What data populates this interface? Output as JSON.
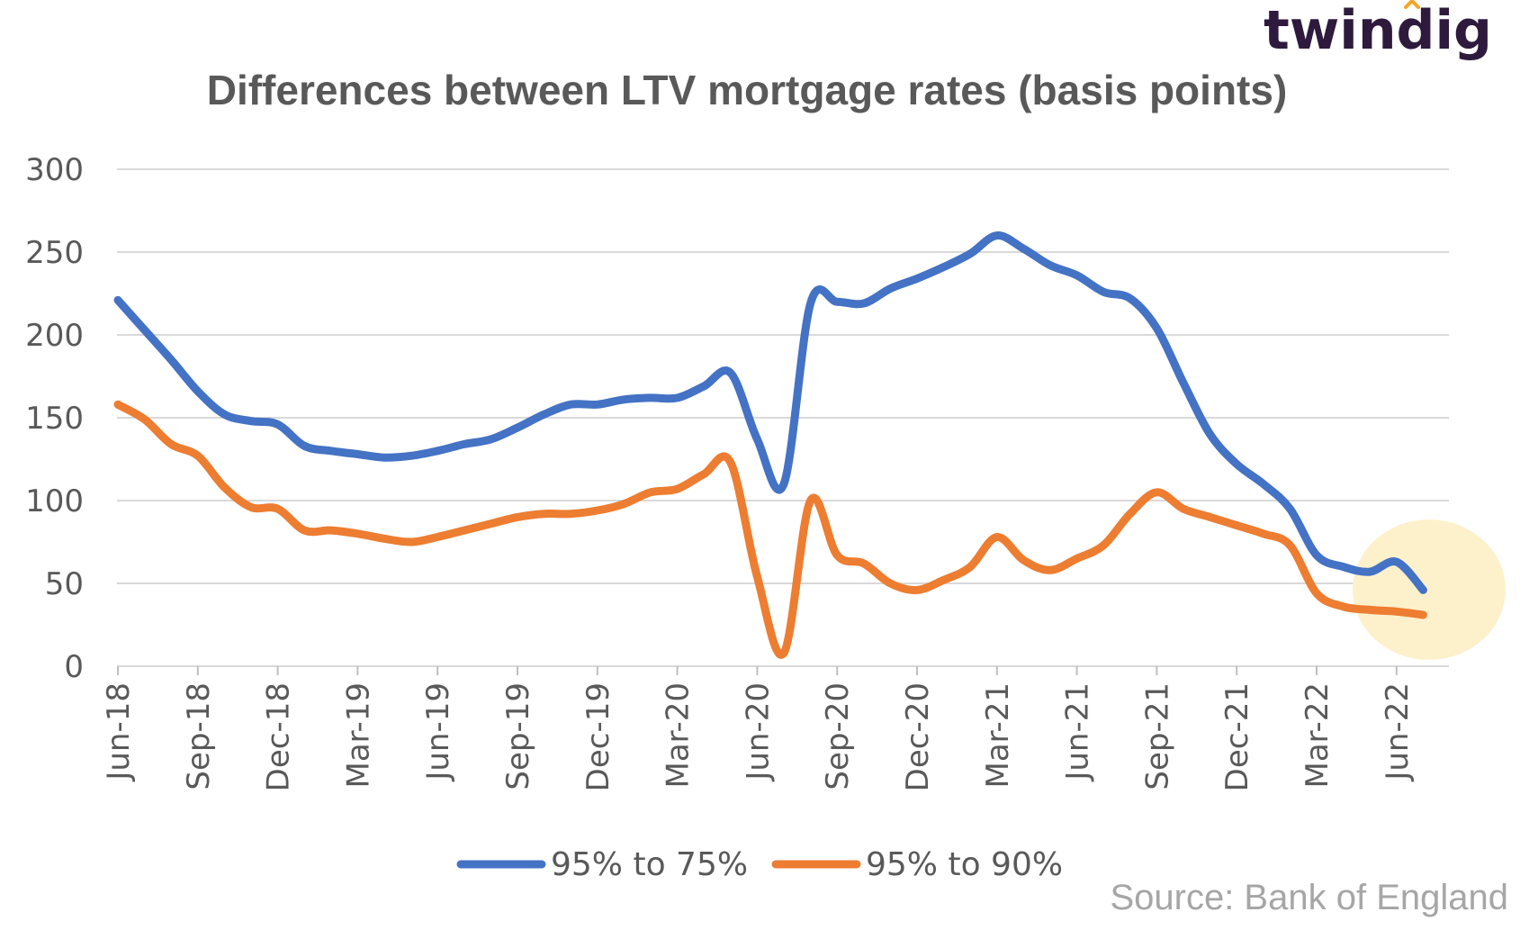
{
  "brand": {
    "logo_text": "twindig",
    "accent_color": "#f5a623",
    "text_color": "#2e1a3c"
  },
  "source_note": "Source: Bank of England",
  "chart_data": {
    "type": "line",
    "title": "Differences between LTV mortgage rates (basis points)",
    "xlabel": "",
    "ylabel": "",
    "ylim": [
      0,
      300
    ],
    "yticks": [
      0,
      50,
      100,
      150,
      200,
      250,
      300
    ],
    "grid": true,
    "legend_position": "bottom",
    "x": [
      "Jun-18",
      "Jul-18",
      "Aug-18",
      "Sep-18",
      "Oct-18",
      "Nov-18",
      "Dec-18",
      "Jan-19",
      "Feb-19",
      "Mar-19",
      "Apr-19",
      "May-19",
      "Jun-19",
      "Jul-19",
      "Aug-19",
      "Sep-19",
      "Oct-19",
      "Nov-19",
      "Dec-19",
      "Jan-20",
      "Feb-20",
      "Mar-20",
      "Apr-20",
      "May-20",
      "Jun-20",
      "Jul-20",
      "Aug-20",
      "Sep-20",
      "Oct-20",
      "Nov-20",
      "Dec-20",
      "Jan-21",
      "Feb-21",
      "Mar-21",
      "Apr-21",
      "May-21",
      "Jun-21",
      "Jul-21",
      "Aug-21",
      "Sep-21",
      "Oct-21",
      "Nov-21",
      "Dec-21",
      "Jan-22",
      "Feb-22",
      "Mar-22",
      "Apr-22",
      "May-22",
      "Jun-22",
      "Jul-22"
    ],
    "x_tick_labels": [
      "Jun-18",
      "Sep-18",
      "Dec-18",
      "Mar-19",
      "Jun-19",
      "Sep-19",
      "Dec-19",
      "Mar-20",
      "Jun-20",
      "Sep-20",
      "Dec-20",
      "Mar-21",
      "Jun-21",
      "Sep-21",
      "Dec-21",
      "Mar-22",
      "Jun-22"
    ],
    "series": [
      {
        "name": "95% to 75%",
        "color": "#4472c4",
        "values": [
          221,
          203,
          185,
          166,
          152,
          148,
          146,
          133,
          130,
          128,
          126,
          127,
          130,
          134,
          137,
          144,
          152,
          158,
          158,
          161,
          162,
          162,
          169,
          177,
          137,
          110,
          219,
          220,
          219,
          228,
          234,
          241,
          249,
          260,
          252,
          242,
          236,
          226,
          222,
          204,
          171,
          140,
          122,
          110,
          95,
          67,
          60,
          57,
          63,
          46
        ]
      },
      {
        "name": "95% to 90%",
        "color": "#ed7d31",
        "values": [
          158,
          149,
          134,
          127,
          108,
          96,
          95,
          82,
          82,
          80,
          77,
          75,
          78,
          82,
          86,
          90,
          92,
          92,
          94,
          98,
          105,
          107,
          116,
          123,
          54,
          8,
          100,
          67,
          62,
          50,
          46,
          52,
          60,
          78,
          64,
          58,
          65,
          73,
          92,
          105,
          95,
          90,
          85,
          80,
          73,
          44,
          36,
          34,
          33,
          31
        ]
      }
    ]
  }
}
